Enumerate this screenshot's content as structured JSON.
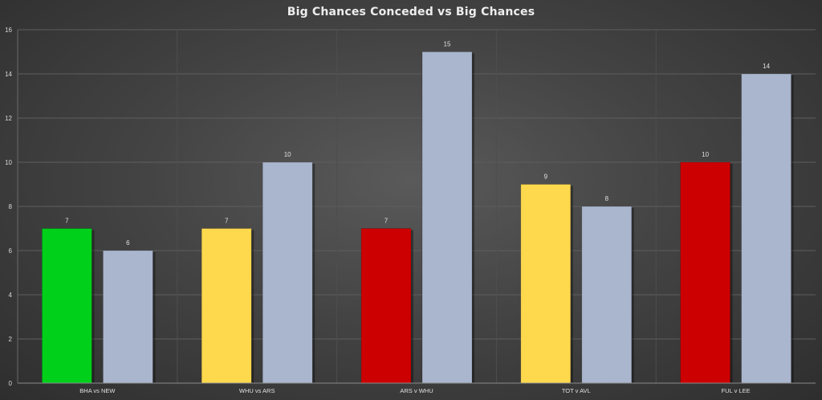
{
  "chart_data": {
    "type": "bar",
    "title": "Big Chances Conceded vs Big Chances",
    "categories": [
      "BHA vs NEW",
      "WHU vs ARS",
      "ARS v WHU",
      "TOT v AVL",
      "FUL v LEE"
    ],
    "series": [
      {
        "values": [
          7,
          7,
          7,
          9,
          10
        ],
        "colors": [
          "#00d01a",
          "#ffd94d",
          "#cc0000",
          "#ffd94d",
          "#cc0000"
        ]
      },
      {
        "values": [
          6,
          10,
          15,
          8,
          14
        ],
        "colors": [
          "#aab6ce",
          "#aab6ce",
          "#aab6ce",
          "#aab6ce",
          "#aab6ce"
        ]
      }
    ],
    "ylim": [
      0,
      16
    ],
    "yticks": [
      0,
      2,
      4,
      6,
      8,
      10,
      12,
      14,
      16
    ],
    "grid": true,
    "data_labels": true,
    "xlabel": "",
    "ylabel": ""
  }
}
